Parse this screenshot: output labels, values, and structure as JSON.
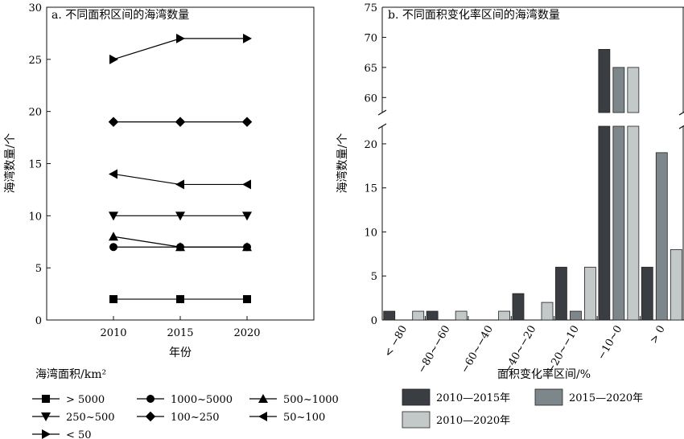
{
  "chart_data": [
    {
      "type": "line",
      "title": "a. 不同面积区间的海湾数量",
      "xlabel": "年份",
      "ylabel": "海湾数量/个",
      "x": [
        2010,
        2015,
        2020
      ],
      "xlim": [
        2005,
        2025
      ],
      "ylim": [
        0,
        30
      ],
      "yticks": [
        0,
        5,
        10,
        15,
        20,
        25,
        30
      ],
      "grid": false,
      "legend_title": "海湾面积/km²",
      "legend_position": "bottom-left",
      "series": [
        {
          "name": "> 5000",
          "marker": "square",
          "values": [
            2,
            2,
            2
          ]
        },
        {
          "name": "1000~5000",
          "marker": "circle",
          "values": [
            7,
            7,
            7
          ]
        },
        {
          "name": "500~1000",
          "marker": "triangle-up",
          "values": [
            8,
            7,
            7
          ]
        },
        {
          "name": "250~500",
          "marker": "triangle-down",
          "values": [
            10,
            10,
            10
          ]
        },
        {
          "name": "100~250",
          "marker": "diamond",
          "values": [
            19,
            19,
            19
          ]
        },
        {
          "name": "50~100",
          "marker": "triangle-left",
          "values": [
            14,
            13,
            13
          ]
        },
        {
          "name": "< 50",
          "marker": "triangle-right",
          "values": [
            25,
            27,
            27
          ]
        }
      ]
    },
    {
      "type": "bar",
      "title": "b. 不同面积变化率区间的海湾数量",
      "xlabel": "面积变化率区间/%",
      "ylabel": "海湾数量/个",
      "categories": [
        "< −80",
        "−80~−60",
        "−60~−40",
        "−40~−20",
        "−20~−10",
        "−10~0",
        "> 0"
      ],
      "axis_break": {
        "lower_range": [
          0,
          22
        ],
        "upper_range": [
          57.5,
          75
        ]
      },
      "yticks_lower": [
        0,
        5,
        10,
        15,
        20
      ],
      "yticks_upper": [
        60,
        65,
        70,
        75
      ],
      "grid": false,
      "legend_position": "bottom",
      "series": [
        {
          "name": "2010—2015年",
          "color": "#3a3d42",
          "values": [
            1,
            1,
            0,
            3,
            6,
            68,
            6
          ]
        },
        {
          "name": "2015—2020年",
          "color": "#7d878b",
          "values": [
            0,
            0,
            0,
            0,
            1,
            65,
            19
          ]
        },
        {
          "name": "2010—2020年",
          "color": "#c3c8c9",
          "values": [
            1,
            1,
            1,
            2,
            6,
            65,
            8
          ]
        }
      ]
    }
  ]
}
